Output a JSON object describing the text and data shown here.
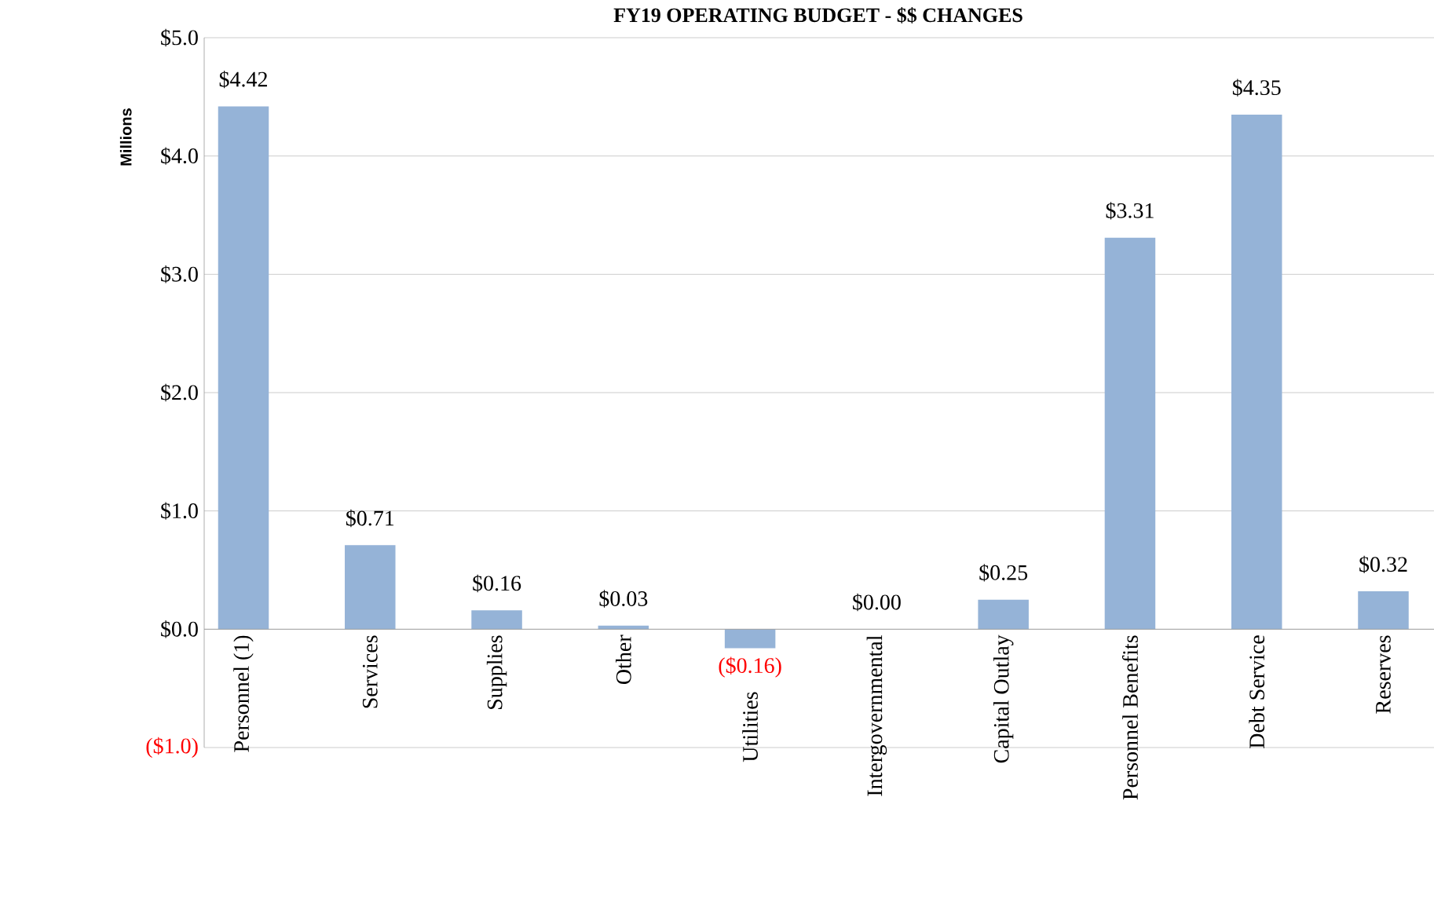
{
  "chart_data": {
    "type": "bar",
    "title": "FY19 OPERATING BUDGET - $$ CHANGES",
    "ylabel": "Millions",
    "categories": [
      "Personnel (1)",
      "Services",
      "Supplies",
      "Other",
      "Utilities",
      "Intergovernmental",
      "Capital Outlay",
      "Personnel Benefits",
      "Debt Service",
      "Reserves"
    ],
    "values": [
      4.42,
      0.71,
      0.16,
      0.03,
      -0.16,
      0.0,
      0.25,
      3.31,
      4.35,
      0.32
    ],
    "value_labels": [
      "$4.42",
      "$0.71",
      "$0.16",
      "$0.03",
      "($0.16)",
      "$0.00",
      "$0.25",
      "$3.31",
      "$4.35",
      "$0.32"
    ],
    "color": "#95b3d7",
    "ylim": [
      -1,
      5
    ],
    "yticks": [
      {
        "value": -1,
        "label": "($1.0)"
      },
      {
        "value": 0,
        "label": "$0.0"
      },
      {
        "value": 1,
        "label": "$1.0"
      },
      {
        "value": 2,
        "label": "$2.0"
      },
      {
        "value": 3,
        "label": "$3.0"
      },
      {
        "value": 4,
        "label": "$4.0"
      },
      {
        "value": 5,
        "label": "$5.0"
      }
    ],
    "grid": "y"
  }
}
